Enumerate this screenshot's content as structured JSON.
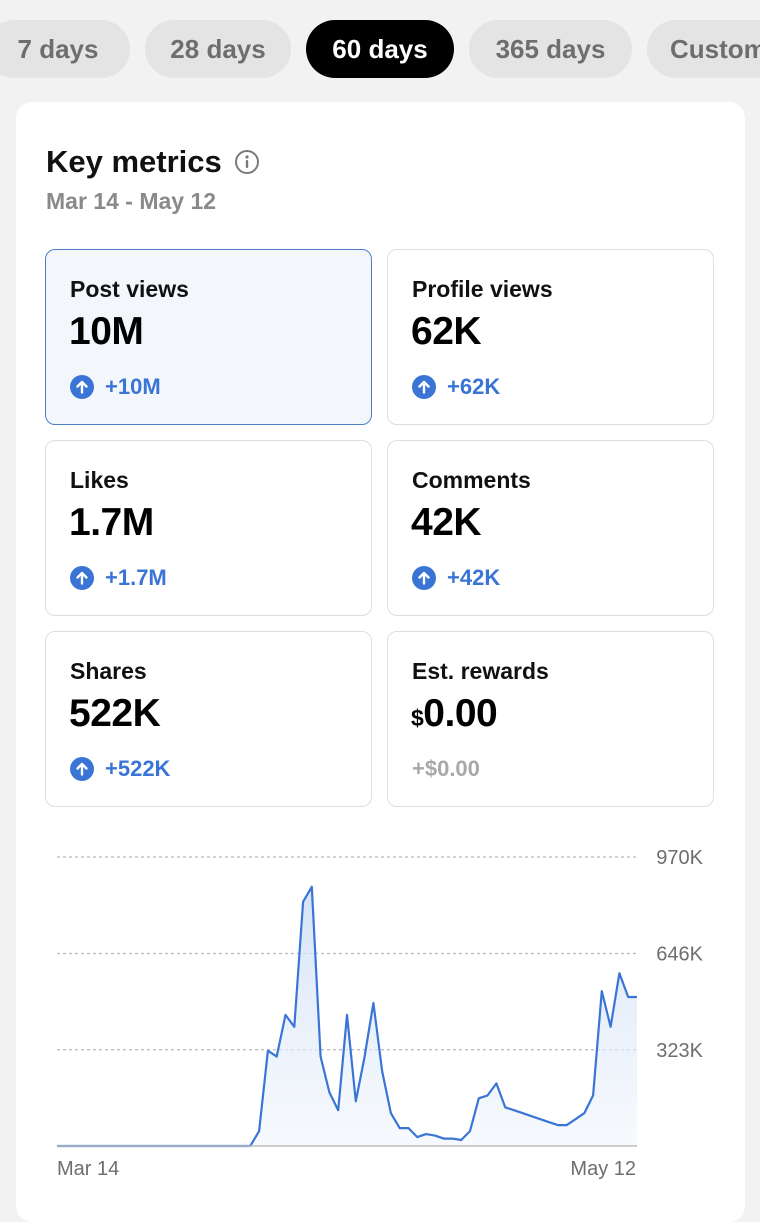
{
  "tabs": [
    {
      "label": "7 days"
    },
    {
      "label": "28 days"
    },
    {
      "label": "60 days",
      "active": true
    },
    {
      "label": "365 days"
    },
    {
      "label": "Custom"
    }
  ],
  "card": {
    "title": "Key metrics",
    "icon": "info-icon",
    "date_range": "Mar 14 - May 12"
  },
  "metrics": [
    {
      "label": "Post views",
      "value": "10M",
      "change": "+10M",
      "selected": true
    },
    {
      "label": "Profile views",
      "value": "62K",
      "change": "+62K"
    },
    {
      "label": "Likes",
      "value": "1.7M",
      "change": "+1.7M"
    },
    {
      "label": "Comments",
      "value": "42K",
      "change": "+42K"
    },
    {
      "label": "Shares",
      "value": "522K",
      "change": "+522K"
    },
    {
      "label": "Est. rewards",
      "currency": "$",
      "value": "0.00",
      "change": "+$0.00"
    }
  ],
  "colors": {
    "accent": "#3a75d6",
    "active_tab": "#000000",
    "selected_card_bg": "#f3f7fc",
    "line": "#3a75d6"
  },
  "chart_data": {
    "type": "area",
    "x_labels": [
      "Mar 14",
      "May 12"
    ],
    "y_ticks": [
      "970K",
      "646K",
      "323K"
    ],
    "ylim": [
      0,
      970000
    ],
    "grid": true,
    "values": [
      0,
      0,
      0,
      0,
      0,
      0,
      0,
      0,
      0,
      0,
      0,
      0,
      0,
      0,
      0,
      0,
      0,
      0,
      0,
      0,
      0,
      0,
      0,
      50000,
      320000,
      300000,
      440000,
      400000,
      820000,
      870000,
      300000,
      180000,
      120000,
      440000,
      150000,
      300000,
      480000,
      250000,
      110000,
      60000,
      60000,
      30000,
      40000,
      35000,
      25000,
      25000,
      20000,
      50000,
      160000,
      170000,
      210000,
      130000,
      120000,
      110000,
      100000,
      90000,
      80000,
      70000,
      70000,
      90000,
      110000,
      170000,
      520000,
      400000,
      580000,
      500000,
      500000
    ]
  }
}
